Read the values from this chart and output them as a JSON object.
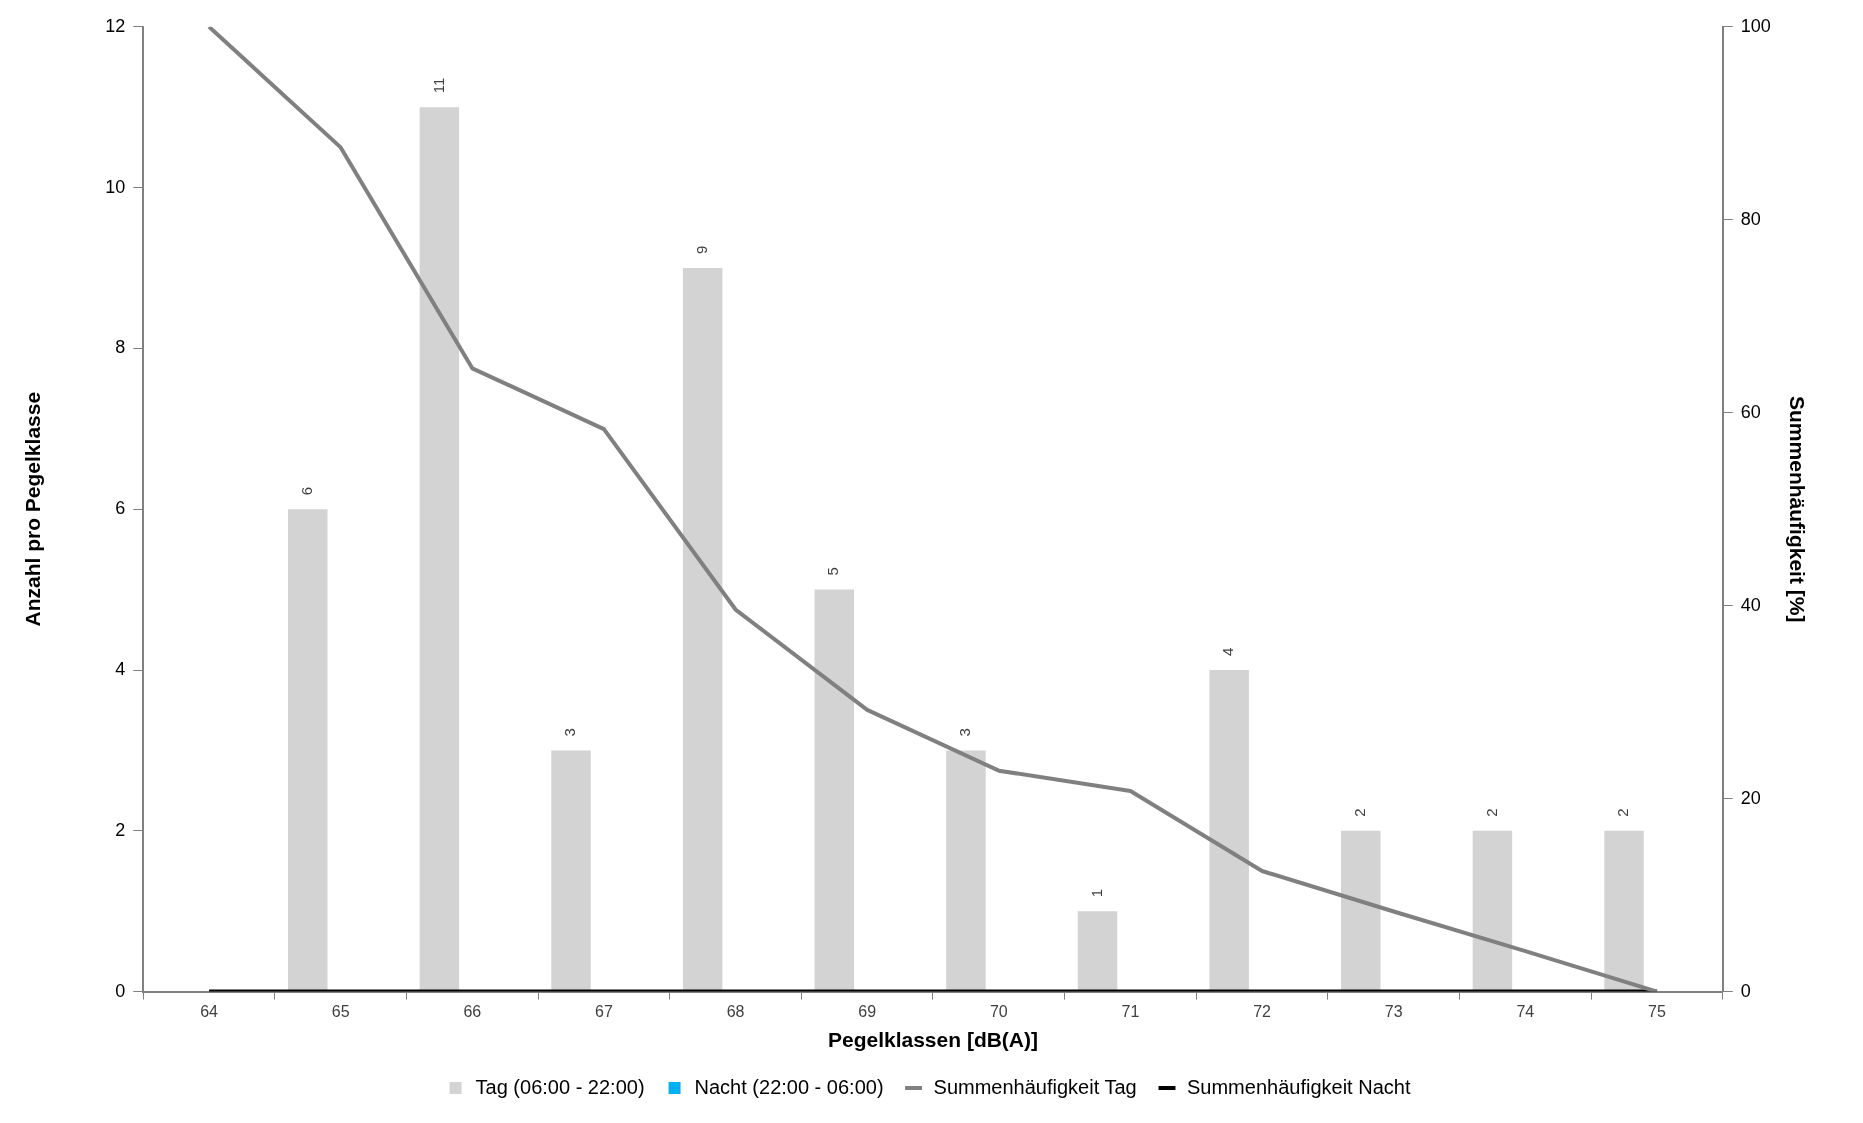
{
  "chart_data": {
    "type": "bar",
    "xlabel": "Pegelklassen [dB(A)]",
    "ylabel": "Anzahl pro Pegelklasse",
    "y2label": "Summenhäufigkeit [%]",
    "categories": [
      "64",
      "65",
      "66",
      "67",
      "68",
      "69",
      "70",
      "71",
      "72",
      "73",
      "74",
      "75"
    ],
    "series": [
      {
        "name": "Tag (06:00 - 22:00)",
        "color": "#d3d3d3",
        "values": [
          0,
          6,
          11,
          3,
          9,
          5,
          3,
          1,
          4,
          2,
          2,
          2
        ],
        "value_labels": [
          null,
          "6",
          "11",
          "3",
          "9",
          "5",
          "3",
          "1",
          "4",
          "2",
          "2",
          "2"
        ]
      },
      {
        "name": "Nacht (22:00 - 06:00)",
        "color": "#00b0f0",
        "values": [
          0,
          0,
          0,
          0,
          0,
          0,
          0,
          0,
          0,
          0,
          0,
          0
        ]
      },
      {
        "name": "Summenhäufigkeit Tag",
        "type": "line",
        "axis": "y2",
        "color": "#808080",
        "values": [
          100,
          87.5,
          64.6,
          58.3,
          39.6,
          29.2,
          22.9,
          20.8,
          12.5,
          8.3,
          4.2,
          0
        ]
      },
      {
        "name": "Summenhäufigkeit Nacht",
        "type": "line",
        "axis": "y2",
        "color": "#000000",
        "values": [
          0,
          0,
          0,
          0,
          0,
          0,
          0,
          0,
          0,
          0,
          0,
          0
        ]
      }
    ],
    "ylim": [
      0,
      12
    ],
    "yticks": [
      0,
      2,
      4,
      6,
      8,
      10,
      12
    ],
    "y2lim": [
      0,
      100
    ],
    "y2ticks": [
      0,
      20,
      40,
      60,
      80,
      100
    ],
    "grid": false,
    "legend": "bottom",
    "marker": "none",
    "line_style": "solid"
  }
}
